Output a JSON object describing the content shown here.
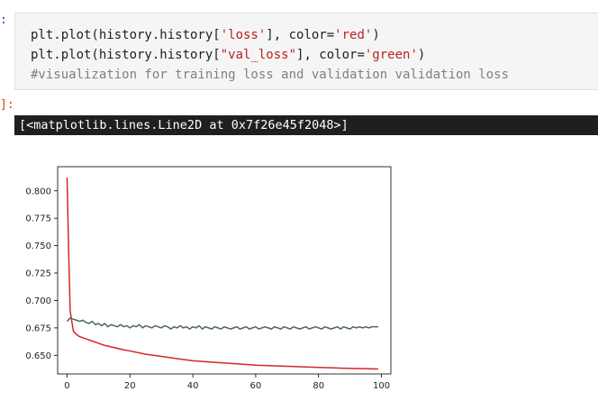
{
  "notebook": {
    "in_prompt": ":",
    "out_prompt": "]:",
    "code_cell": {
      "line1": {
        "pre": "plt.plot(history.history[",
        "str1": "'loss'",
        "mid": "], color=",
        "str2": "'red'",
        "post": ")"
      },
      "line2": {
        "pre": "plt.plot(history.history[",
        "str1": "\"val_loss\"",
        "mid": "], color=",
        "str2": "'green'",
        "post": ")"
      },
      "line3": "#visualization for training loss and validation validation loss"
    },
    "output_text": "[<matplotlib.lines.Line2D at 0x7f26e45f2048>]"
  },
  "chart_data": {
    "type": "line",
    "xlim": [
      -3,
      103
    ],
    "ylim": [
      0.633,
      0.822
    ],
    "xticks": [
      0,
      20,
      40,
      60,
      80,
      100
    ],
    "yticks": [
      0.65,
      0.675,
      0.7,
      0.725,
      0.75,
      0.775,
      0.8
    ],
    "xtick_labels": [
      "0",
      "20",
      "40",
      "60",
      "80",
      "100"
    ],
    "ytick_labels": [
      "0.650",
      "0.675",
      "0.700",
      "0.725",
      "0.750",
      "0.775",
      "0.800"
    ],
    "grid": false,
    "legend": "none",
    "series": [
      {
        "color": "#d62728",
        "x": [
          0,
          0.5,
          1,
          2,
          3,
          4,
          5,
          6,
          8,
          10,
          12,
          15,
          18,
          20,
          25,
          30,
          35,
          40,
          45,
          50,
          55,
          60,
          65,
          70,
          75,
          80,
          85,
          90,
          95,
          99
        ],
        "values": [
          0.812,
          0.745,
          0.69,
          0.672,
          0.669,
          0.667,
          0.666,
          0.665,
          0.663,
          0.661,
          0.659,
          0.657,
          0.655,
          0.654,
          0.651,
          0.649,
          0.647,
          0.645,
          0.644,
          0.643,
          0.642,
          0.641,
          0.6405,
          0.64,
          0.6395,
          0.639,
          0.6385,
          0.638,
          0.6378,
          0.6375
        ]
      },
      {
        "color": "#4f6a4f",
        "x": [
          0,
          1,
          2,
          3,
          4,
          5,
          6,
          7,
          8,
          9,
          10,
          11,
          12,
          13,
          14,
          15,
          16,
          17,
          18,
          19,
          20,
          21,
          22,
          23,
          24,
          25,
          26,
          27,
          28,
          29,
          30,
          31,
          32,
          33,
          34,
          35,
          36,
          37,
          38,
          39,
          40,
          41,
          42,
          43,
          44,
          45,
          46,
          47,
          48,
          49,
          50,
          51,
          52,
          53,
          54,
          55,
          56,
          57,
          58,
          59,
          60,
          61,
          62,
          63,
          64,
          65,
          66,
          67,
          68,
          69,
          70,
          71,
          72,
          73,
          74,
          75,
          76,
          77,
          78,
          79,
          80,
          81,
          82,
          83,
          84,
          85,
          86,
          87,
          88,
          89,
          90,
          91,
          92,
          93,
          94,
          95,
          96,
          97,
          98,
          99
        ],
        "values": [
          0.681,
          0.684,
          0.683,
          0.682,
          0.681,
          0.682,
          0.68,
          0.679,
          0.681,
          0.678,
          0.679,
          0.677,
          0.679,
          0.676,
          0.678,
          0.677,
          0.676,
          0.678,
          0.676,
          0.677,
          0.675,
          0.677,
          0.676,
          0.678,
          0.675,
          0.677,
          0.676,
          0.675,
          0.677,
          0.676,
          0.675,
          0.677,
          0.676,
          0.674,
          0.676,
          0.675,
          0.677,
          0.675,
          0.676,
          0.674,
          0.676,
          0.675,
          0.677,
          0.674,
          0.676,
          0.675,
          0.674,
          0.676,
          0.675,
          0.674,
          0.676,
          0.675,
          0.674,
          0.675,
          0.676,
          0.674,
          0.675,
          0.676,
          0.674,
          0.675,
          0.676,
          0.674,
          0.675,
          0.676,
          0.675,
          0.674,
          0.676,
          0.675,
          0.674,
          0.676,
          0.675,
          0.674,
          0.676,
          0.675,
          0.674,
          0.675,
          0.676,
          0.674,
          0.675,
          0.676,
          0.675,
          0.674,
          0.676,
          0.675,
          0.674,
          0.675,
          0.676,
          0.674,
          0.676,
          0.675,
          0.674,
          0.676,
          0.675,
          0.676,
          0.675,
          0.676,
          0.675,
          0.676,
          0.676,
          0.676
        ]
      }
    ]
  }
}
